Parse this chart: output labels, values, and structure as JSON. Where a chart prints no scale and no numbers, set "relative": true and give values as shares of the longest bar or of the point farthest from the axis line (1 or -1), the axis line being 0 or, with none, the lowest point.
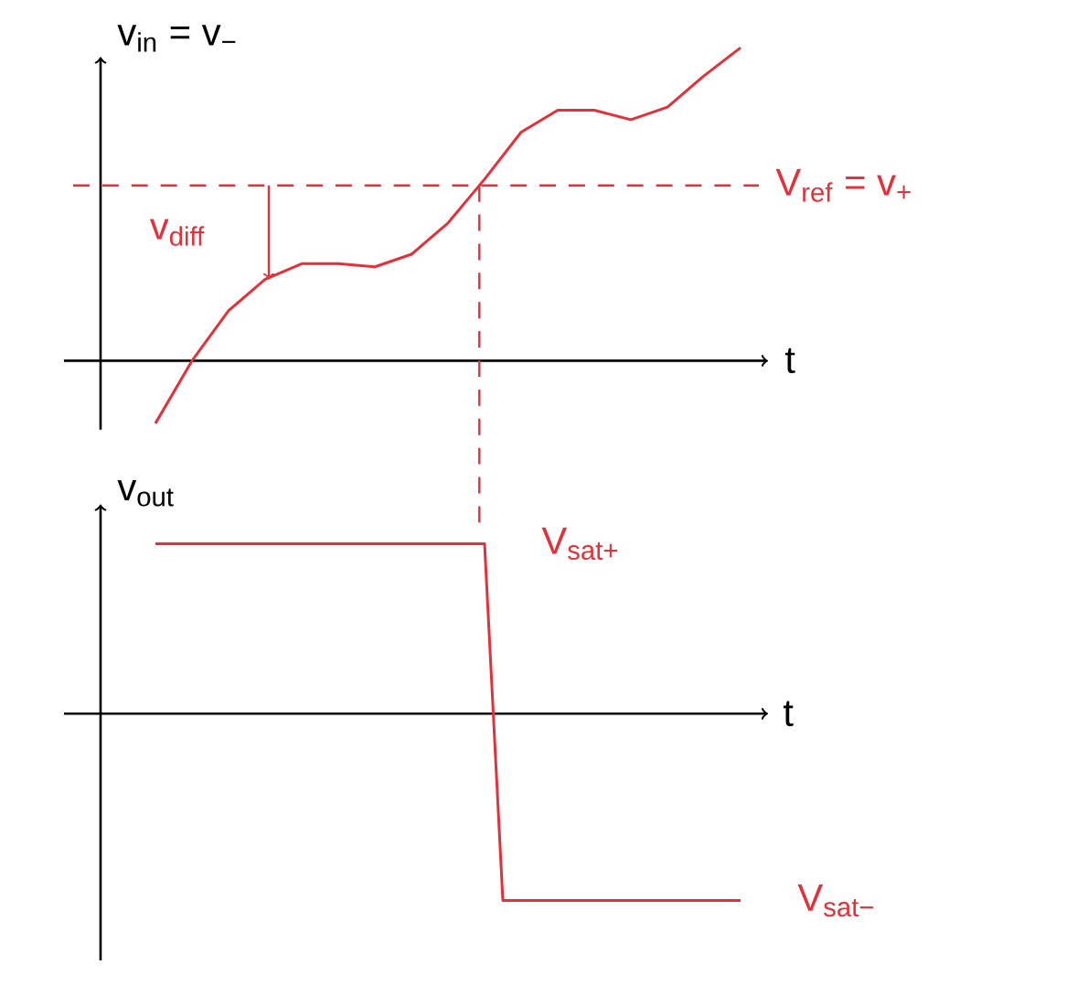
{
  "chart_data": [
    {
      "type": "line",
      "relative": true,
      "xlabel": "t",
      "ylabel": "v$_{in}$ = v$_{−}$",
      "categories": [
        null,
        null,
        null,
        null,
        null,
        null,
        null,
        null,
        null,
        null,
        null,
        null,
        null,
        null,
        null,
        null,
        null
      ],
      "values": [
        -0.2,
        0,
        0.16,
        0.26,
        0.31,
        0.31,
        0.3,
        0.34,
        0.44,
        0.58,
        0.73,
        0.8,
        0.8,
        0.77,
        0.81,
        0.91,
        1
      ],
      "color": "#e5303a",
      "ref_lines": [
        {
          "axis": "y",
          "value": 0.56,
          "label": "V$_{ref}$ = v$_{+}$",
          "color": "#e5303a",
          "line_style": "dashed"
        }
      ],
      "annotations": [
        "v$_{diff}$"
      ]
    },
    {
      "type": "line",
      "relative": true,
      "xlabel": "t",
      "ylabel": "v$_{out}$",
      "categories": [
        null,
        null,
        null,
        null,
        null,
        null,
        null,
        null,
        null,
        null,
        null,
        null,
        null,
        null,
        null,
        null,
        null,
        null,
        null,
        null,
        null,
        null,
        null,
        null,
        null,
        null,
        null,
        null,
        null,
        null,
        null,
        null,
        null
      ],
      "values": [
        0.91,
        0.91,
        0.91,
        0.91,
        0.91,
        0.91,
        0.91,
        0.91,
        0.91,
        0.91,
        0.91,
        0.91,
        0.91,
        0.91,
        0.91,
        0.91,
        0.91,
        0.91,
        0.91,
        -1,
        -1,
        -1,
        -1,
        -1,
        -1,
        -1,
        -1,
        -1,
        -1,
        -1,
        -1,
        -1,
        -1
      ],
      "color": "#e5303a",
      "annotations": [
        "V$_{sat+}$",
        "V$_{sat−}$"
      ]
    }
  ]
}
